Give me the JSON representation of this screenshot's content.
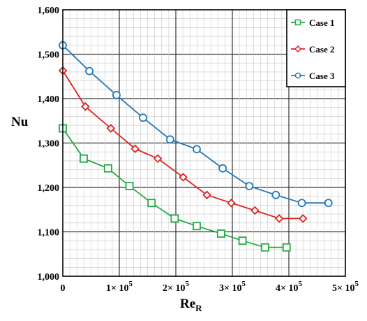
{
  "chart_data": {
    "type": "line",
    "title": "",
    "xlabel": "Re",
    "xlabel_sub": "R",
    "ylabel": "Nu",
    "xlim": [
      0,
      500000
    ],
    "ylim": [
      1000,
      1600
    ],
    "grid": true,
    "legend_position": "top-right",
    "x_ticks": [
      {
        "value": 0,
        "label": "0"
      },
      {
        "value": 100000,
        "label": "1× 10"
      },
      {
        "value": 200000,
        "label": "2× 10"
      },
      {
        "value": 300000,
        "label": "3× 10"
      },
      {
        "value": 400000,
        "label": "4× 10"
      },
      {
        "value": 500000,
        "label": "5× 10"
      }
    ],
    "x_tick_exponent": "5",
    "y_ticks": [
      {
        "value": 1000,
        "label": "1,000"
      },
      {
        "value": 1100,
        "label": "1,100"
      },
      {
        "value": 1200,
        "label": "1,200"
      },
      {
        "value": 1300,
        "label": "1,300"
      },
      {
        "value": 1400,
        "label": "1,400"
      },
      {
        "value": 1500,
        "label": "1,500"
      },
      {
        "value": 1600,
        "label": "1,600"
      }
    ],
    "series": [
      {
        "name": "Case 1",
        "color": "#22aa44",
        "marker": "square",
        "x": [
          0,
          37000,
          80000,
          118000,
          157000,
          198000,
          237000,
          280000,
          318000,
          358000,
          396000
        ],
        "y": [
          1333,
          1265,
          1243,
          1203,
          1165,
          1130,
          1113,
          1096,
          1080,
          1065,
          1065
        ]
      },
      {
        "name": "Case 2",
        "color": "#dd2222",
        "marker": "diamond",
        "x": [
          0,
          40000,
          85000,
          128000,
          168000,
          213000,
          255000,
          298000,
          340000,
          383000,
          425000
        ],
        "y": [
          1463,
          1382,
          1333,
          1287,
          1265,
          1223,
          1183,
          1165,
          1148,
          1130,
          1130
        ]
      },
      {
        "name": "Case 3",
        "color": "#2277bb",
        "marker": "circle",
        "x": [
          0,
          47000,
          95000,
          142000,
          190000,
          237000,
          283000,
          330000,
          377000,
          423000,
          470000
        ],
        "y": [
          1520,
          1462,
          1408,
          1357,
          1308,
          1286,
          1243,
          1203,
          1183,
          1165,
          1165
        ]
      }
    ]
  }
}
